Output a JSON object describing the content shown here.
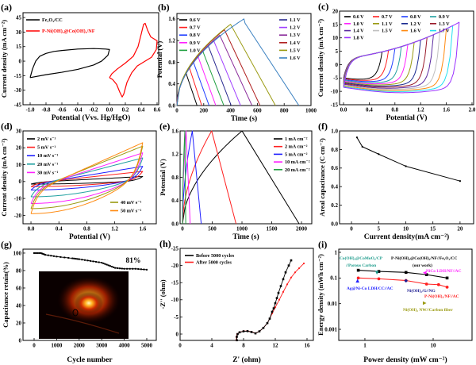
{
  "chart_data": [
    {
      "panel_label": "(a)",
      "type": "line",
      "xlabel": "Potential (Vvs. Hg/HgO)",
      "ylabel": "Current density (mA cm⁻²)",
      "xlim": [
        -1.09,
        0.62
      ],
      "ylim": [
        -45,
        50
      ],
      "xticks": [
        "-1.0",
        "-0.8",
        "-0.6",
        "-0.4",
        "-0.2",
        "0.0",
        "0.2",
        "0.4",
        "0.6"
      ],
      "yticks": [
        "-45",
        "-30",
        "-15",
        "0",
        "15",
        "30",
        "45"
      ],
      "legend": "top-left",
      "series": [
        {
          "name": "Fe₂O₃/CC",
          "color": "#000000",
          "points": [
            [
              -1.0,
              -17
            ],
            [
              -0.97,
              -8
            ],
            [
              -0.93,
              0
            ],
            [
              -0.88,
              5
            ],
            [
              -0.8,
              8
            ],
            [
              -0.7,
              10
            ],
            [
              -0.6,
              11
            ],
            [
              -0.4,
              12.5
            ],
            [
              -0.2,
              13
            ],
            [
              -0.05,
              12.5
            ],
            [
              0.0,
              12
            ],
            [
              -0.02,
              6
            ],
            [
              -0.1,
              0
            ],
            [
              -0.2,
              -4
            ],
            [
              -0.4,
              -8.5
            ],
            [
              -0.6,
              -11.5
            ],
            [
              -0.8,
              -14
            ],
            [
              -1.0,
              -17
            ]
          ]
        },
        {
          "name": "P-Ni(OH)₂@Co(OH)₂/NF",
          "color": "#ff0000",
          "points": [
            [
              0.0,
              -17
            ],
            [
              0.03,
              -13
            ],
            [
              0.1,
              -8
            ],
            [
              0.2,
              -2
            ],
            [
              0.3,
              5
            ],
            [
              0.36,
              15
            ],
            [
              0.4,
              28
            ],
            [
              0.43,
              38
            ],
            [
              0.45,
              39
            ],
            [
              0.48,
              32
            ],
            [
              0.52,
              25
            ],
            [
              0.6,
              21
            ],
            [
              0.59,
              12
            ],
            [
              0.53,
              4
            ],
            [
              0.45,
              0
            ],
            [
              0.35,
              -5
            ],
            [
              0.28,
              -12
            ],
            [
              0.22,
              -22
            ],
            [
              0.18,
              -34
            ],
            [
              0.16,
              -37
            ],
            [
              0.13,
              -32
            ],
            [
              0.09,
              -24
            ],
            [
              0.04,
              -19
            ],
            [
              0.0,
              -17
            ]
          ]
        }
      ]
    },
    {
      "panel_label": "(b)",
      "type": "line",
      "xlabel": "Time (s)",
      "ylabel": "Potential (V)",
      "xlim": [
        0,
        1000
      ],
      "ylim": [
        0,
        1.7
      ],
      "xticks": [
        "0",
        "200",
        "400",
        "600",
        "800",
        "1000"
      ],
      "yticks": [
        "0.0",
        "0.4",
        "0.8",
        "1.2",
        "1.6"
      ],
      "legend": "top-left and top-right",
      "series": [
        {
          "name": "0.6 V",
          "color": "#000000",
          "charge_time_s": 70,
          "peak_V": 0.6,
          "discharge_end_s": 150
        },
        {
          "name": "0.7 V",
          "color": "#ff2020",
          "charge_time_s": 95,
          "peak_V": 0.7,
          "discharge_end_s": 185
        },
        {
          "name": "0.8 V",
          "color": "#2040ff",
          "charge_time_s": 125,
          "peak_V": 0.8,
          "discharge_end_s": 240
        },
        {
          "name": "0.9 V",
          "color": "#ff20ff",
          "charge_time_s": 160,
          "peak_V": 0.9,
          "discharge_end_s": 290
        },
        {
          "name": "1.0 V",
          "color": "#20a040",
          "charge_time_s": 195,
          "peak_V": 1.0,
          "discharge_end_s": 350
        },
        {
          "name": "1.1 V",
          "color": "#2a2a90",
          "charge_time_s": 235,
          "peak_V": 1.1,
          "discharge_end_s": 405
        },
        {
          "name": "1.2 V",
          "color": "#a040ff",
          "charge_time_s": 275,
          "peak_V": 1.2,
          "discharge_end_s": 475
        },
        {
          "name": "1.3 V",
          "color": "#8a2a9a",
          "charge_time_s": 320,
          "peak_V": 1.3,
          "discharge_end_s": 560
        },
        {
          "name": "1.4 V",
          "color": "#b02020",
          "charge_time_s": 355,
          "peak_V": 1.4,
          "discharge_end_s": 620
        },
        {
          "name": "1.5 V",
          "color": "#9a9a10",
          "charge_time_s": 400,
          "peak_V": 1.5,
          "discharge_end_s": 735
        },
        {
          "name": "1.6 V",
          "color": "#3a80c0",
          "charge_time_s": 500,
          "peak_V": 1.6,
          "discharge_end_s": 910
        }
      ]
    },
    {
      "panel_label": "(c)",
      "type": "line",
      "xlabel": "Potential (V)",
      "ylabel": "Current density (mA cm⁻²)",
      "xlim": [
        -0.062,
        2.025
      ],
      "ylim": [
        -15,
        20
      ],
      "xticks": [
        "0.0",
        "0.4",
        "0.8",
        "1.2",
        "1.6",
        "2.0"
      ],
      "yticks": [
        "-15",
        "-10",
        "-5",
        "0",
        "5",
        "10",
        "15",
        "20"
      ],
      "legend": "top",
      "series": [
        {
          "name": "0.6 V",
          "window_V": 0.6,
          "color": "#000000"
        },
        {
          "name": "0.7 V",
          "window_V": 0.7,
          "color": "#ff2020"
        },
        {
          "name": "0.8 V",
          "window_V": 0.8,
          "color": "#2040ff"
        },
        {
          "name": "0.9 V",
          "window_V": 0.9,
          "color": "#20a0a0"
        },
        {
          "name": "1.0 V",
          "window_V": 1.0,
          "color": "#ff20ff"
        },
        {
          "name": "1.1 V",
          "window_V": 1.1,
          "color": "#9a9a10"
        },
        {
          "name": "1.2 V",
          "window_V": 1.2,
          "color": "#1a2a90"
        },
        {
          "name": "1.3 V",
          "window_V": 1.3,
          "color": "#9a1a2a"
        },
        {
          "name": "1.4 V",
          "window_V": 1.4,
          "color": "#5a2aa0"
        },
        {
          "name": "1.5 V",
          "window_V": 1.5,
          "color": "#c0c0c0"
        },
        {
          "name": "1.6 V",
          "window_V": 1.6,
          "color": "#ff8a10"
        },
        {
          "name": "1.7 V",
          "window_V": 1.7,
          "color": "#20e0f0"
        },
        {
          "name": "1.8 V",
          "window_V": 1.8,
          "color": "#9a30ff"
        }
      ]
    },
    {
      "panel_label": "(d)",
      "type": "line",
      "xlabel": "Potential (V)",
      "ylabel": "Current density (mA cm⁻²)",
      "xlim": [
        -0.114,
        1.795
      ],
      "ylim": [
        -25,
        30
      ],
      "xticks": [
        "0.0",
        "0.4",
        "0.8",
        "1.2",
        "1.6"
      ],
      "yticks": [
        "-20",
        "-10",
        "0",
        "10",
        "20",
        "30"
      ],
      "legend": "top-left and bottom-right",
      "series": [
        {
          "name": "2 mV s⁻¹",
          "color": "#000000",
          "max_current": 3,
          "min_current": -1.5
        },
        {
          "name": "5 mV s⁻¹",
          "color": "#ff2020",
          "max_current": 6,
          "min_current": -3
        },
        {
          "name": "10 mV s⁻¹",
          "color": "#2020ff",
          "max_current": 9,
          "min_current": -5
        },
        {
          "name": "20 mV s⁻¹",
          "color": "#20a0a0",
          "max_current": 14,
          "min_current": -9
        },
        {
          "name": "30 mV s⁻¹",
          "color": "#ff20ff",
          "max_current": 17,
          "min_current": -13
        },
        {
          "name": "40 mV s⁻¹",
          "color": "#9a9a10",
          "max_current": 21,
          "min_current": -16
        },
        {
          "name": "50 mV s⁻¹",
          "color": "#ff8a10",
          "max_current": 23,
          "min_current": -19
        }
      ]
    },
    {
      "panel_label": "(e)",
      "type": "line",
      "xlabel": "Time (s)",
      "ylabel": "Potential (V)",
      "xlim": [
        -40,
        2173
      ],
      "ylim": [
        0,
        1.6
      ],
      "xticks": [
        "0",
        "500",
        "1000",
        "1500",
        "2000"
      ],
      "yticks": [
        "0.0",
        "0.4",
        "0.8",
        "1.2",
        "1.6"
      ],
      "legend": "top-right",
      "series": [
        {
          "name": "1 mA cm⁻²",
          "color": "#000000",
          "charge_time_s": 1000,
          "peak_V": 1.6,
          "discharge_end_s": 1960
        },
        {
          "name": "2 mA cm⁻²",
          "color": "#ff2020",
          "charge_time_s": 490,
          "peak_V": 1.6,
          "discharge_end_s": 900
        },
        {
          "name": "5 mA cm⁻²",
          "color": "#2020ff",
          "charge_time_s": 165,
          "peak_V": 1.6,
          "discharge_end_s": 315
        },
        {
          "name": "10 mA cm⁻²",
          "color": "#ff20ff",
          "charge_time_s": 60,
          "peak_V": 1.6,
          "discharge_end_s": 130
        },
        {
          "name": "20 mA cm⁻²",
          "color": "#20a040",
          "charge_time_s": 40,
          "peak_V": 1.6,
          "discharge_end_s": 55
        }
      ]
    },
    {
      "panel_label": "(f)",
      "type": "line",
      "xlabel": "Current density(mA cm⁻²)",
      "ylabel": "Areal capacitance (C cm⁻²)",
      "xlim": [
        -2.2,
        22.5
      ],
      "ylim": [
        0,
        1.0
      ],
      "xticks": [
        "0",
        "5",
        "10",
        "15",
        "20"
      ],
      "yticks": [
        "0.0",
        "0.2",
        "0.4",
        "0.6",
        "0.8",
        "1.0"
      ],
      "series": [
        {
          "color": "#000000",
          "points": [
            [
              1,
              0.93
            ],
            [
              2,
              0.83
            ],
            [
              5,
              0.75
            ],
            [
              10,
              0.62
            ],
            [
              20,
              0.46
            ]
          ]
        }
      ]
    },
    {
      "panel_label": "(g)",
      "type": "line",
      "xlabel": "Cycle number",
      "ylabel": "Capacitance retain(%)",
      "xlim": [
        -493,
        5423
      ],
      "ylim": [
        0,
        104.5
      ],
      "xticks": [
        "0",
        "1000",
        "2000",
        "3000",
        "4000",
        "5000"
      ],
      "yticks": [
        "0",
        "20",
        "40",
        "60",
        "80",
        "100"
      ],
      "annotation": "81%",
      "inset": "photo of glowing device",
      "series": [
        {
          "color": "#000000",
          "points": [
            [
              0,
              100
            ],
            [
              300,
              100
            ],
            [
              500,
              98
            ],
            [
              1000,
              96
            ],
            [
              1700,
              94
            ],
            [
              2000,
              93
            ],
            [
              2500,
              91
            ],
            [
              3000,
              89
            ],
            [
              3300,
              86
            ],
            [
              3600,
              83
            ],
            [
              4000,
              82
            ],
            [
              4500,
              82
            ],
            [
              5000,
              81
            ]
          ]
        }
      ]
    },
    {
      "panel_label": "(h)",
      "type": "scatter",
      "xlabel": "Z' (ohm)",
      "ylabel": "-Z'' (ohm)",
      "xlim": [
        0,
        16.8
      ],
      "ylim": [
        1.85,
        -25
      ],
      "xticks": [
        "0",
        "4",
        "8",
        "12",
        "16"
      ],
      "yticks": [
        "0",
        "-5",
        "-10",
        "-15",
        "-20",
        "-25"
      ],
      "legend": "top-left",
      "series": [
        {
          "name": "Before 5000 cycles",
          "color": "#000000",
          "points": [
            [
              7.15,
              1.8
            ],
            [
              7.15,
              0.8
            ],
            [
              7.25,
              0
            ],
            [
              7.5,
              -0.5
            ],
            [
              8,
              -0.8
            ],
            [
              8.5,
              -0.85
            ],
            [
              9,
              -0.6
            ],
            [
              9.5,
              -0.2
            ],
            [
              10,
              -0.8
            ],
            [
              10.5,
              -1.8
            ],
            [
              11,
              -3.2
            ],
            [
              11.3,
              -4.5
            ],
            [
              11.6,
              -6.5
            ],
            [
              11.8,
              -7.5
            ],
            [
              12,
              -9
            ],
            [
              12.2,
              -10.5
            ],
            [
              12.4,
              -12
            ],
            [
              12.7,
              -14
            ],
            [
              13,
              -16
            ],
            [
              13.3,
              -18
            ],
            [
              13.7,
              -20
            ],
            [
              14,
              -21.5
            ]
          ]
        },
        {
          "name": "After 5000 cycles",
          "color": "#ff2020",
          "points": [
            [
              7.1,
              1.8
            ],
            [
              7.1,
              0.8
            ],
            [
              7.2,
              0
            ],
            [
              7.5,
              -0.55
            ],
            [
              8,
              -0.85
            ],
            [
              8.5,
              -0.9
            ],
            [
              9,
              -0.65
            ],
            [
              9.5,
              -0.25
            ],
            [
              10,
              -0.8
            ],
            [
              10.5,
              -1.8
            ],
            [
              11,
              -3.2
            ],
            [
              11.3,
              -4.5
            ],
            [
              11.6,
              -6
            ],
            [
              12,
              -7.8
            ],
            [
              12.5,
              -10
            ],
            [
              13,
              -12.3
            ],
            [
              13.5,
              -14.5
            ],
            [
              14,
              -16.5
            ],
            [
              14.5,
              -18
            ],
            [
              15,
              -19.2
            ],
            [
              15.6,
              -20.6
            ]
          ]
        }
      ]
    },
    {
      "panel_label": "(i)",
      "type": "scatter",
      "xlabel": "Power density (mW cm⁻²)",
      "ylabel": "Energy density (mWh cm⁻²)",
      "xscale": "log",
      "yscale": "log",
      "xlim": [
        0.414,
        37.1
      ],
      "ylim": [
        0.00037,
        1.33
      ],
      "xticks": [
        "1",
        "10"
      ],
      "yticks": [
        "0.001",
        "0.01",
        "0.1",
        "1"
      ],
      "series": [
        {
          "name_lines": [
            "P-Ni(OH)₂@Co(OH)₂/NF//Fe₂O₃/CC",
            "(our work)"
          ],
          "color": "#000000",
          "marker": "square",
          "points": [
            [
              0.8,
              0.2
            ],
            [
              1.6,
              0.18
            ],
            [
              4,
              0.165
            ],
            [
              8,
              0.135
            ],
            [
              16,
              0.1
            ]
          ]
        },
        {
          "name_lines": [
            "P-Ni(OH)₂/NF//AC"
          ],
          "color": "#ff2020",
          "marker": "circle",
          "points": [
            [
              0.8,
              0.1
            ],
            [
              1.6,
              0.093
            ],
            [
              4,
              0.08
            ],
            [
              8,
              0.058
            ],
            [
              12,
              0.055
            ],
            [
              16,
              0.044
            ]
          ]
        },
        {
          "name_lines": [
            "Co(OH)₂@CoMoO₄/CP",
            "//Porous Carbon"
          ],
          "color": "#1a9a8a",
          "marker": "triangle-down",
          "points": [
            [
              1.5,
              0.16
            ]
          ]
        },
        {
          "name_lines": [
            "NiCo LDH/NF//AC"
          ],
          "color": "#ff20ff",
          "marker": "triangle-left",
          "points": [
            [
              7.5,
              0.16
            ]
          ]
        },
        {
          "name_lines": [
            "Ag@Ni-Co LDH/CC//AC"
          ],
          "color": "#2020ff",
          "marker": "triangle-up",
          "points": [
            [
              0.78,
              0.078
            ]
          ]
        },
        {
          "name_lines": [
            "Ni(OH)₂/G//NG"
          ],
          "color": "#1a1a90",
          "marker": "diamond",
          "points": [
            [
              4,
              0.078
            ]
          ]
        },
        {
          "name_lines": [
            "Ni(OH)₂ NW//Carbon fiber"
          ],
          "color": "#9a9a10",
          "marker": "triangle-right",
          "points": [
            [
              7.5,
              0.0105
            ]
          ]
        }
      ]
    }
  ]
}
